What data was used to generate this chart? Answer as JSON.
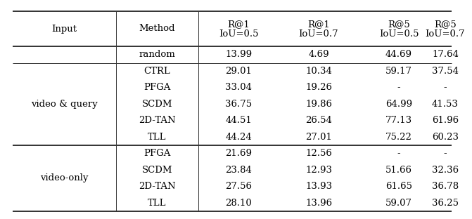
{
  "header_row1": [
    "Input",
    "Method",
    "R@1",
    "R@1",
    "R@5",
    "R@5"
  ],
  "header_row2": [
    "",
    "",
    "IoU=0.5",
    "IoU=0.7",
    "IoU=0.5",
    "IoU=0.7"
  ],
  "rows": [
    {
      "group": "",
      "method": "random",
      "vals": [
        "13.99",
        "4.69",
        "44.69",
        "17.64"
      ]
    },
    {
      "group": "video & query",
      "method": "CTRL",
      "vals": [
        "29.01",
        "10.34",
        "59.17",
        "37.54"
      ]
    },
    {
      "group": "video & query",
      "method": "PFGA",
      "vals": [
        "33.04",
        "19.26",
        "-",
        "-"
      ]
    },
    {
      "group": "video & query",
      "method": "SCDM",
      "vals": [
        "36.75",
        "19.86",
        "64.99",
        "41.53"
      ]
    },
    {
      "group": "video & query",
      "method": "2D-TAN",
      "vals": [
        "44.51",
        "26.54",
        "77.13",
        "61.96"
      ]
    },
    {
      "group": "video & query",
      "method": "TLL",
      "vals": [
        "44.24",
        "27.01",
        "75.22",
        "60.23"
      ]
    },
    {
      "group": "video-only",
      "method": "PFGA",
      "vals": [
        "21.69",
        "12.56",
        "-",
        "-"
      ]
    },
    {
      "group": "video-only",
      "method": "SCDM",
      "vals": [
        "23.84",
        "12.93",
        "51.66",
        "32.36"
      ]
    },
    {
      "group": "video-only",
      "method": "2D-TAN",
      "vals": [
        "27.56",
        "13.93",
        "61.65",
        "36.78"
      ]
    },
    {
      "group": "video-only",
      "method": "TLL",
      "vals": [
        "28.10",
        "13.96",
        "59.07",
        "36.25"
      ]
    }
  ],
  "bg_color": "#ffffff",
  "text_color": "#000000",
  "font_size": 9.5,
  "line_color": "#333333",
  "lw_thick": 1.4,
  "lw_thin": 0.7
}
